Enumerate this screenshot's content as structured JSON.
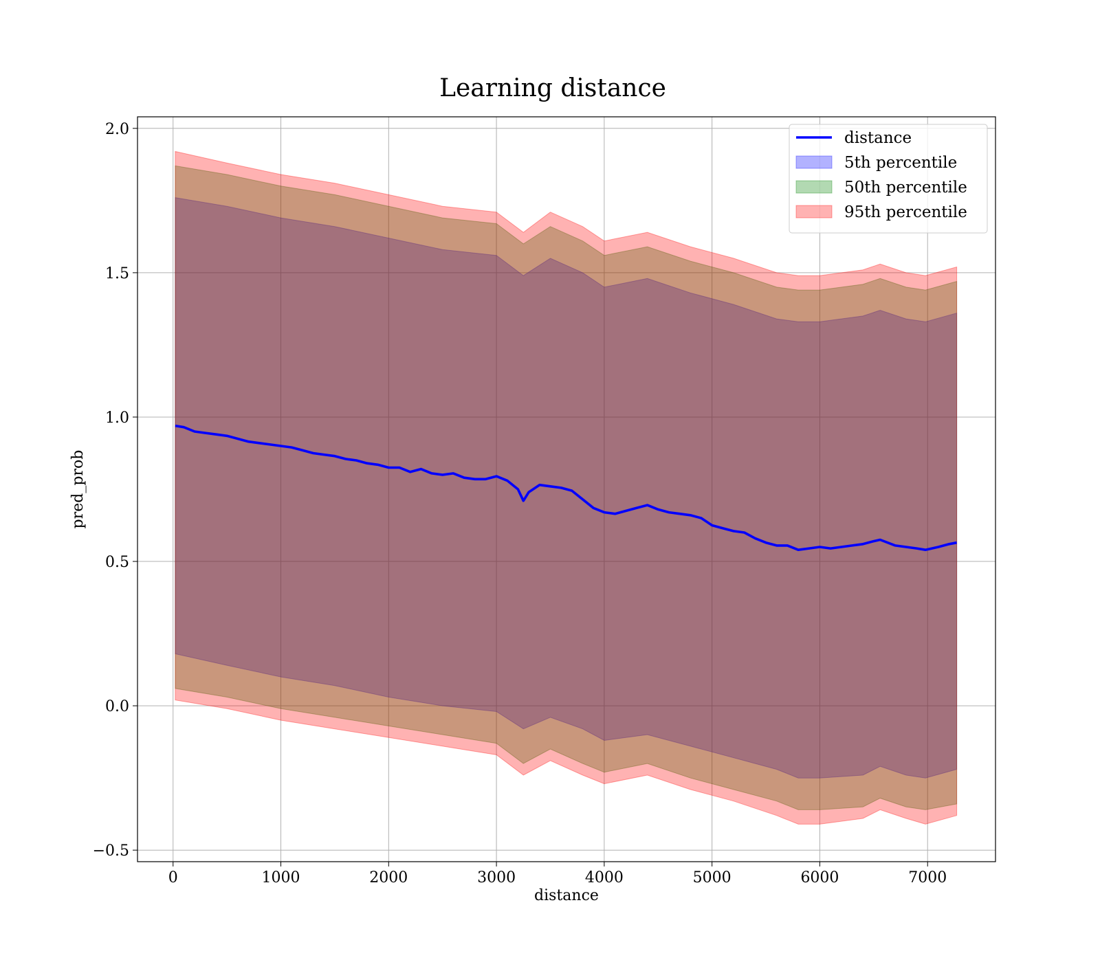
{
  "chart_data": {
    "type": "line",
    "title": "Learning distance",
    "xlabel": "distance",
    "ylabel": "pred_prob",
    "xlim": [
      -330,
      7630
    ],
    "ylim": [
      -0.54,
      2.04
    ],
    "xticks": [
      0,
      1000,
      2000,
      3000,
      4000,
      5000,
      6000,
      7000
    ],
    "xtick_labels": [
      "0",
      "1000",
      "2000",
      "3000",
      "4000",
      "5000",
      "6000",
      "7000"
    ],
    "yticks": [
      -0.5,
      0.0,
      0.5,
      1.0,
      1.5,
      2.0
    ],
    "ytick_labels": [
      "−0.5",
      "0.0",
      "0.5",
      "1.0",
      "1.5",
      "2.0"
    ],
    "grid": true,
    "legend_position": "top-right",
    "legend": [
      {
        "label": "distance",
        "kind": "line",
        "color": "#0000ff"
      },
      {
        "label": "5th percentile",
        "kind": "patch",
        "color": "#0000ff"
      },
      {
        "label": "50th percentile",
        "kind": "patch",
        "color": "#008000"
      },
      {
        "label": "95th percentile",
        "kind": "patch",
        "color": "#ff0000"
      }
    ],
    "series": [
      {
        "name": "distance",
        "color": "#0000ff",
        "x": [
          20,
          100,
          200,
          300,
          400,
          500,
          600,
          700,
          800,
          900,
          1000,
          1100,
          1200,
          1300,
          1400,
          1500,
          1600,
          1700,
          1800,
          1900,
          2000,
          2100,
          2200,
          2300,
          2400,
          2500,
          2600,
          2700,
          2800,
          2900,
          3000,
          3100,
          3200,
          3250,
          3300,
          3400,
          3500,
          3600,
          3700,
          3800,
          3900,
          4000,
          4100,
          4200,
          4300,
          4400,
          4500,
          4600,
          4700,
          4800,
          4900,
          5000,
          5100,
          5200,
          5300,
          5400,
          5500,
          5600,
          5700,
          5800,
          5900,
          6000,
          6100,
          6200,
          6300,
          6400,
          6500,
          6560,
          6700,
          6800,
          6900,
          6980,
          7100,
          7200,
          7270
        ],
        "y": [
          0.97,
          0.965,
          0.95,
          0.945,
          0.94,
          0.935,
          0.925,
          0.915,
          0.91,
          0.905,
          0.9,
          0.895,
          0.885,
          0.875,
          0.87,
          0.865,
          0.855,
          0.85,
          0.84,
          0.835,
          0.825,
          0.825,
          0.81,
          0.82,
          0.805,
          0.8,
          0.805,
          0.79,
          0.785,
          0.785,
          0.795,
          0.78,
          0.75,
          0.71,
          0.74,
          0.765,
          0.76,
          0.755,
          0.745,
          0.715,
          0.685,
          0.67,
          0.665,
          0.675,
          0.685,
          0.695,
          0.68,
          0.67,
          0.665,
          0.66,
          0.65,
          0.625,
          0.615,
          0.605,
          0.6,
          0.58,
          0.565,
          0.555,
          0.555,
          0.54,
          0.545,
          0.55,
          0.545,
          0.55,
          0.555,
          0.56,
          0.57,
          0.575,
          0.555,
          0.55,
          0.545,
          0.54,
          0.55,
          0.56,
          0.565
        ]
      },
      {
        "name": "5th percentile",
        "color": "#0000ff",
        "x": [
          20,
          500,
          1000,
          1500,
          2000,
          2500,
          3000,
          3250,
          3500,
          3800,
          4000,
          4400,
          4800,
          5200,
          5600,
          5800,
          6000,
          6400,
          6560,
          6800,
          6980,
          7270
        ],
        "lower": [
          0.18,
          0.14,
          0.1,
          0.07,
          0.03,
          0.0,
          -0.02,
          -0.08,
          -0.04,
          -0.08,
          -0.12,
          -0.1,
          -0.14,
          -0.18,
          -0.22,
          -0.25,
          -0.25,
          -0.24,
          -0.21,
          -0.24,
          -0.25,
          -0.22
        ],
        "upper": [
          1.76,
          1.73,
          1.69,
          1.66,
          1.62,
          1.58,
          1.56,
          1.49,
          1.55,
          1.5,
          1.45,
          1.48,
          1.43,
          1.39,
          1.34,
          1.33,
          1.33,
          1.35,
          1.37,
          1.34,
          1.33,
          1.36
        ]
      },
      {
        "name": "50th percentile",
        "color": "#008000",
        "x": [
          20,
          500,
          1000,
          1500,
          2000,
          2500,
          3000,
          3250,
          3500,
          3800,
          4000,
          4400,
          4800,
          5200,
          5600,
          5800,
          6000,
          6400,
          6560,
          6800,
          6980,
          7270
        ],
        "lower": [
          0.06,
          0.03,
          -0.01,
          -0.04,
          -0.07,
          -0.1,
          -0.13,
          -0.2,
          -0.15,
          -0.2,
          -0.23,
          -0.2,
          -0.25,
          -0.29,
          -0.33,
          -0.36,
          -0.36,
          -0.35,
          -0.32,
          -0.35,
          -0.36,
          -0.34
        ],
        "upper": [
          1.87,
          1.84,
          1.8,
          1.77,
          1.73,
          1.69,
          1.67,
          1.6,
          1.66,
          1.61,
          1.56,
          1.59,
          1.54,
          1.5,
          1.45,
          1.44,
          1.44,
          1.46,
          1.48,
          1.45,
          1.44,
          1.47
        ]
      },
      {
        "name": "95th percentile",
        "color": "#ff0000",
        "x": [
          20,
          500,
          1000,
          1500,
          2000,
          2500,
          3000,
          3250,
          3500,
          3800,
          4000,
          4400,
          4800,
          5200,
          5600,
          5800,
          6000,
          6400,
          6560,
          6800,
          6980,
          7270
        ],
        "lower": [
          0.02,
          -0.01,
          -0.05,
          -0.08,
          -0.11,
          -0.14,
          -0.17,
          -0.24,
          -0.19,
          -0.24,
          -0.27,
          -0.24,
          -0.29,
          -0.33,
          -0.38,
          -0.41,
          -0.41,
          -0.39,
          -0.36,
          -0.39,
          -0.41,
          -0.38
        ],
        "upper": [
          1.92,
          1.88,
          1.84,
          1.81,
          1.77,
          1.73,
          1.71,
          1.64,
          1.71,
          1.66,
          1.61,
          1.64,
          1.59,
          1.55,
          1.5,
          1.49,
          1.49,
          1.51,
          1.53,
          1.5,
          1.49,
          1.52
        ]
      }
    ]
  }
}
